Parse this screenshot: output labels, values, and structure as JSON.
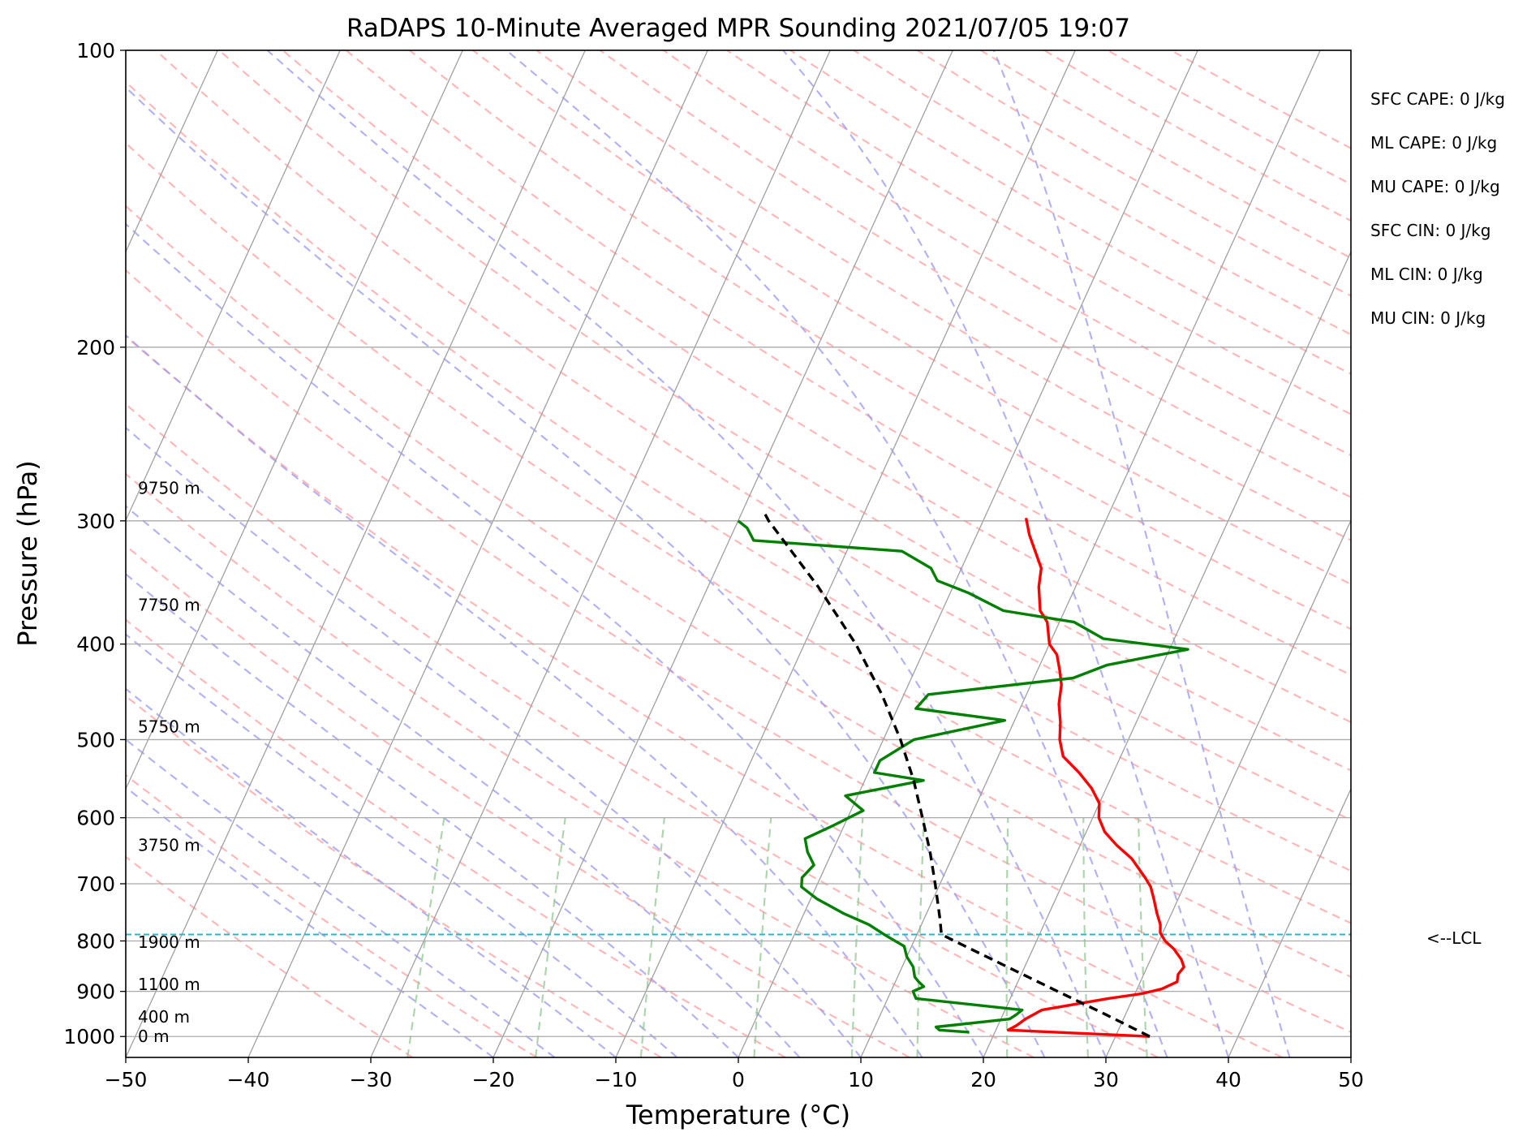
{
  "chart_data": {
    "type": "skew-t",
    "title": "RaDAPS 10-Minute Averaged MPR Sounding 2021/07/05 19:07",
    "xlabel": "Temperature (°C)",
    "ylabel": "Pressure (hPa)",
    "xlim": [
      -50,
      50
    ],
    "ylim": [
      1050,
      100
    ],
    "y_scale": "log",
    "grid": true,
    "x_ticks": [
      "−50",
      "−40",
      "−30",
      "−20",
      "−10",
      "0",
      "10",
      "20",
      "30",
      "40",
      "50"
    ],
    "y_ticks": [
      "1000",
      "900",
      "800",
      "700",
      "600",
      "500",
      "400",
      "300",
      "200",
      "100"
    ],
    "height_labels": [
      {
        "label": "0 m",
        "p": 1000
      },
      {
        "label": "400 m",
        "p": 955
      },
      {
        "label": "1100 m",
        "p": 885
      },
      {
        "label": "1900 m",
        "p": 802
      },
      {
        "label": "3750 m",
        "p": 640
      },
      {
        "label": "5750 m",
        "p": 485
      },
      {
        "label": "7750 m",
        "p": 365
      },
      {
        "label": "9750 m",
        "p": 278
      }
    ],
    "indices": [
      {
        "label": "SFC CAPE: 0 J/kg"
      },
      {
        "label": "ML CAPE: 0 J/kg"
      },
      {
        "label": "MU CAPE: 0 J/kg"
      },
      {
        "label": "SFC CIN: 0 J/kg"
      },
      {
        "label": "ML CIN: 0 J/kg"
      },
      {
        "label": "MU CIN: 0 J/kg"
      }
    ],
    "lcl": {
      "label": "<--LCL",
      "p": 788
    },
    "colors": {
      "temperature": "#ff0000",
      "dewpoint": "#008000",
      "parcel": "#000000",
      "lcl": "#17becf",
      "isotherm": "#a0a0a0",
      "dry_adiabat": "#ff9999",
      "moist_adiabat": "#9999ee",
      "mixing_ratio": "#99cc99"
    },
    "series": [
      {
        "key": "temperature",
        "points": [
          [
            1000,
            32.8
          ],
          [
            985,
            21.0
          ],
          [
            975,
            21.5
          ],
          [
            960,
            22.0
          ],
          [
            940,
            23.0
          ],
          [
            915,
            28.0
          ],
          [
            905,
            30.5
          ],
          [
            895,
            32.0
          ],
          [
            880,
            33.0
          ],
          [
            865,
            32.8
          ],
          [
            850,
            33.0
          ],
          [
            835,
            32.5
          ],
          [
            815,
            31.5
          ],
          [
            800,
            30.5
          ],
          [
            785,
            29.8
          ],
          [
            770,
            29.5
          ],
          [
            750,
            28.8
          ],
          [
            725,
            28.0
          ],
          [
            705,
            27.3
          ],
          [
            690,
            26.5
          ],
          [
            660,
            24.7
          ],
          [
            640,
            23.0
          ],
          [
            620,
            21.5
          ],
          [
            600,
            20.5
          ],
          [
            580,
            20.0
          ],
          [
            560,
            18.8
          ],
          [
            540,
            17.2
          ],
          [
            520,
            15.3
          ],
          [
            500,
            14.4
          ],
          [
            480,
            13.8
          ],
          [
            460,
            13.0
          ],
          [
            440,
            12.5
          ],
          [
            425,
            11.8
          ],
          [
            410,
            11.0
          ],
          [
            400,
            10.0
          ],
          [
            380,
            9.0
          ],
          [
            370,
            8.0
          ],
          [
            350,
            7.0
          ],
          [
            335,
            6.5
          ],
          [
            320,
            5.2
          ],
          [
            310,
            4.3
          ],
          [
            298,
            3.4
          ]
        ]
      },
      {
        "key": "dewpoint",
        "points": [
          [
            990,
            17.9
          ],
          [
            985,
            15.4
          ],
          [
            978,
            15.0
          ],
          [
            960,
            20.7
          ],
          [
            950,
            21.1
          ],
          [
            940,
            21.4
          ],
          [
            915,
            12.3
          ],
          [
            900,
            11.8
          ],
          [
            890,
            12.5
          ],
          [
            880,
            11.9
          ],
          [
            870,
            11.4
          ],
          [
            850,
            10.9
          ],
          [
            830,
            10.0
          ],
          [
            810,
            9.4
          ],
          [
            790,
            7.5
          ],
          [
            770,
            5.7
          ],
          [
            750,
            3.2
          ],
          [
            725,
            0.5
          ],
          [
            705,
            -1.2
          ],
          [
            690,
            -1.5
          ],
          [
            670,
            -1.0
          ],
          [
            650,
            -2.0
          ],
          [
            630,
            -2.7
          ],
          [
            610,
            -0.8
          ],
          [
            590,
            1.0
          ],
          [
            570,
            -1.0
          ],
          [
            550,
            4.8
          ],
          [
            540,
            0.5
          ],
          [
            525,
            0.5
          ],
          [
            500,
            2.5
          ],
          [
            478,
            9.2
          ],
          [
            465,
            1.5
          ],
          [
            450,
            2.0
          ],
          [
            433,
            13.2
          ],
          [
            420,
            15.5
          ],
          [
            405,
            21.5
          ],
          [
            395,
            14.2
          ],
          [
            380,
            11.2
          ],
          [
            370,
            5.0
          ],
          [
            355,
            1.5
          ],
          [
            345,
            -1.5
          ],
          [
            335,
            -2.5
          ],
          [
            322,
            -5.5
          ],
          [
            314,
            -18.0
          ],
          [
            305,
            -19.0
          ],
          [
            300,
            -20.0
          ]
        ]
      },
      {
        "key": "parcel",
        "points": [
          [
            1000,
            32.8
          ],
          [
            950,
            28.4
          ],
          [
            900,
            23.6
          ],
          [
            850,
            18.6
          ],
          [
            800,
            13.3
          ],
          [
            788,
            12.0
          ],
          [
            760,
            11.3
          ],
          [
            700,
            9.6
          ],
          [
            650,
            8.0
          ],
          [
            600,
            6.1
          ],
          [
            550,
            4.0
          ],
          [
            500,
            1.4
          ],
          [
            450,
            -1.8
          ],
          [
            400,
            -5.8
          ],
          [
            350,
            -11.0
          ],
          [
            300,
            -17.5
          ],
          [
            294,
            -18.2
          ]
        ]
      }
    ]
  }
}
